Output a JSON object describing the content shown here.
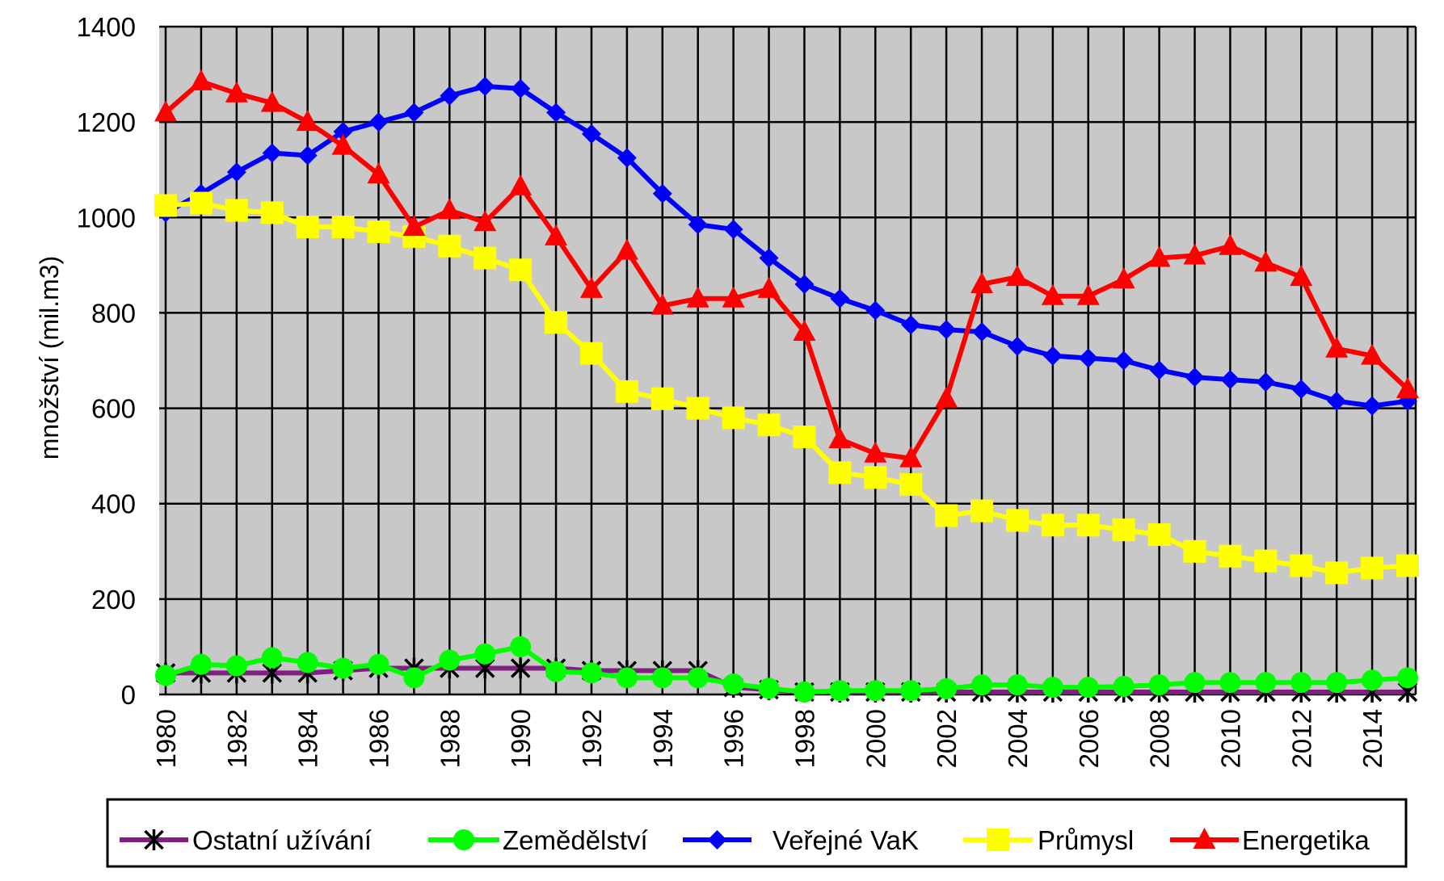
{
  "chart_data": {
    "type": "line",
    "title": "",
    "xlabel": "",
    "ylabel": "množství (mil.m3)",
    "xlim": [
      1980,
      2015
    ],
    "ylim": [
      0,
      1400
    ],
    "y_ticks": [
      0,
      200,
      400,
      600,
      800,
      1000,
      1200,
      1400
    ],
    "x_tick_labels": [
      "1980",
      "1982",
      "1984",
      "1986",
      "1988",
      "1990",
      "1992",
      "1994",
      "1996",
      "1998",
      "2000",
      "2002",
      "2004",
      "2006",
      "2008",
      "2010",
      "2012",
      "2014"
    ],
    "grid": true,
    "legend_position": "bottom",
    "x": [
      1980,
      1981,
      1982,
      1983,
      1984,
      1985,
      1986,
      1987,
      1988,
      1989,
      1990,
      1991,
      1992,
      1993,
      1994,
      1995,
      1996,
      1997,
      1998,
      1999,
      2000,
      2001,
      2002,
      2003,
      2004,
      2005,
      2006,
      2007,
      2008,
      2009,
      2010,
      2011,
      2012,
      2013,
      2014,
      2015
    ],
    "series": [
      {
        "name": "Ostatní užívání",
        "color": "#7f1f7f",
        "marker": "asterisk",
        "values": [
          45,
          45,
          45,
          45,
          45,
          50,
          55,
          55,
          55,
          55,
          55,
          55,
          50,
          50,
          50,
          50,
          15,
          10,
          5,
          5,
          5,
          5,
          5,
          5,
          5,
          5,
          5,
          5,
          5,
          5,
          5,
          5,
          5,
          5,
          5,
          5
        ]
      },
      {
        "name": "Zemědělství",
        "color": "#00ff00",
        "marker": "circle",
        "values": [
          40,
          63,
          60,
          77,
          67,
          55,
          63,
          35,
          72,
          85,
          100,
          48,
          45,
          35,
          35,
          35,
          22,
          13,
          5,
          8,
          8,
          8,
          12,
          20,
          20,
          15,
          15,
          17,
          20,
          25,
          25,
          25,
          25,
          25,
          30,
          35
        ]
      },
      {
        "name": "Veřejné VaK",
        "color": "#0000ff",
        "marker": "diamond",
        "values": [
          1010,
          1050,
          1095,
          1135,
          1130,
          1180,
          1200,
          1220,
          1255,
          1275,
          1270,
          1220,
          1175,
          1125,
          1050,
          985,
          975,
          915,
          860,
          830,
          805,
          775,
          765,
          760,
          730,
          710,
          705,
          700,
          680,
          665,
          660,
          655,
          640,
          615,
          605,
          615
        ]
      },
      {
        "name": "Průmysl",
        "color": "#ffff00",
        "marker": "square",
        "values": [
          1025,
          1030,
          1015,
          1010,
          980,
          980,
          970,
          960,
          940,
          915,
          890,
          780,
          715,
          635,
          620,
          600,
          580,
          565,
          540,
          465,
          455,
          440,
          375,
          385,
          365,
          355,
          355,
          345,
          335,
          300,
          290,
          280,
          270,
          255,
          265,
          270
        ]
      },
      {
        "name": "Energetika",
        "color": "#ff0000",
        "marker": "triangle",
        "values": [
          1220,
          1285,
          1260,
          1240,
          1200,
          1150,
          1090,
          980,
          1015,
          990,
          1065,
          960,
          850,
          930,
          815,
          830,
          830,
          850,
          760,
          535,
          505,
          495,
          620,
          860,
          875,
          835,
          835,
          870,
          915,
          920,
          940,
          905,
          875,
          725,
          710,
          640
        ]
      }
    ]
  }
}
